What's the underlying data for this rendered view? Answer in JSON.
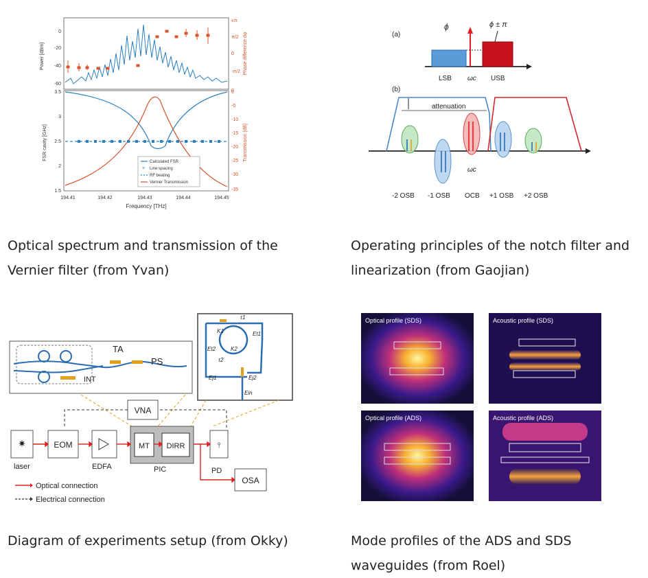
{
  "fig1": {
    "caption": "Optical spectrum and transmission of the Vernier filter (from Yvan)",
    "top_ylabel": "Power [dBm]",
    "top_y2label": "Phase difference dφ",
    "top_yticks": [
      "0",
      "-20",
      "-40",
      "-60"
    ],
    "top_y2ticks": [
      "±π",
      "π/2",
      "0",
      "-π/2",
      "0"
    ],
    "bot_ylabel": "FSR cavity [GHz]",
    "bot_y2label": "Transmission [dB]",
    "bot_yticks": [
      "3.5",
      "3",
      "2.5",
      "2",
      "1.5"
    ],
    "bot_y2ticks": [
      "0",
      "-5",
      "-10",
      "-15",
      "-20",
      "-25",
      "-30",
      "-35"
    ],
    "xticks": [
      "194.41",
      "194.42",
      "194.43",
      "194.44",
      "194.45"
    ],
    "xlabel": "Frequency [THz]",
    "legend": [
      "Calculated FSR",
      "Line spacing",
      "RF beating",
      "Vernier Transmission"
    ]
  },
  "fig2": {
    "caption": "Operating principles of the notch filter and linearization (from Gaojian)",
    "label_a": "(a)",
    "label_b": "(b)",
    "phi": "ϕ",
    "phi_pi": "ϕ ± π",
    "lsb": "LSB",
    "wc": "ωc",
    "usb": "USB",
    "attenuation": "attenuation",
    "sidebands": [
      "-2 OSB",
      "-1 OSB",
      "OCB",
      "+1 OSB",
      "+2 OSB"
    ]
  },
  "fig3": {
    "caption": "Diagram of experiments setup (from Okky)",
    "ta": "TA",
    "ps": "PS",
    "int": "INT",
    "vna": "VNA",
    "eom": "EOM",
    "mt": "MT",
    "dirr": "DIRR",
    "laser": "laser",
    "edfa": "EDFA",
    "pic": "PIC",
    "pd": "PD",
    "osa": "OSA",
    "legend_optical": "Optical connection",
    "legend_electrical": "Electrical connection",
    "ring_labels": [
      "τ1",
      "K1",
      "Et1",
      "Et2",
      "K2",
      "τ2",
      "Ej1",
      "Ej2",
      "Ein"
    ]
  },
  "fig4": {
    "caption": "Mode profiles of the ADS and SDS waveguides (from Roel)",
    "panels": [
      "Optical profile (SDS)",
      "Acoustic profile (SDS)",
      "Optical profile (ADS)",
      "Acoustic profile (ADS)"
    ]
  }
}
